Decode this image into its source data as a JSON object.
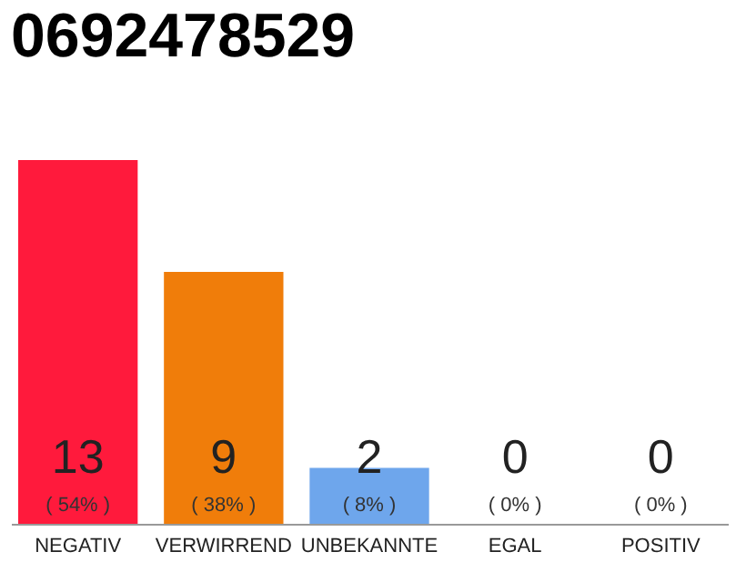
{
  "chart_data": {
    "type": "bar",
    "title": "0692478529",
    "categories": [
      "NEGATIV",
      "VERWIRREND",
      "UNBEKANNTE",
      "EGAL",
      "POSITIV"
    ],
    "values": [
      13,
      9,
      2,
      0,
      0
    ],
    "colors": [
      "#ff1a3c",
      "#f07d0a",
      "#6ea6ec",
      "#6ea6ec",
      "#6ea6ec"
    ],
    "value_labels": [
      "13",
      "9",
      "2",
      "0",
      "0"
    ],
    "annotations": [
      {
        "text": "( 54% )",
        "x": "NEGATIV",
        "y": 0
      },
      {
        "text": "( 38% )",
        "x": "VERWIRREND",
        "y": 0
      },
      {
        "text": "( 8% )",
        "x": "UNBEKANNTE",
        "y": 0
      },
      {
        "text": "( 0% )",
        "x": "EGAL",
        "y": 0
      },
      {
        "text": "( 0% )",
        "x": "POSITIV",
        "y": 0
      }
    ],
    "grid": false
  }
}
